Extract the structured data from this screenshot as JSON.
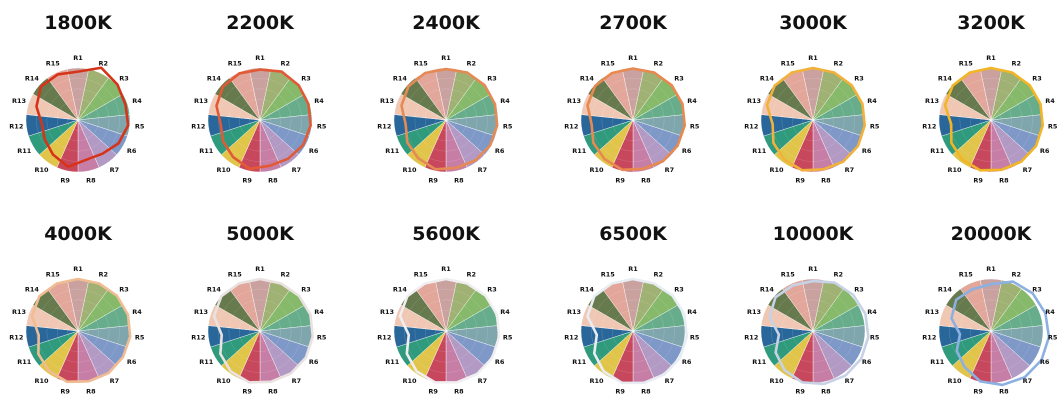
{
  "chart_data": {
    "type": "polar-area",
    "description_note": "",
    "sector_labels": [
      "R1",
      "R2",
      "R3",
      "R4",
      "R5",
      "R6",
      "R7",
      "R8",
      "R9",
      "R10",
      "R11",
      "R12",
      "R13",
      "R14",
      "R15"
    ],
    "sector_colors": [
      "#c9a2a0",
      "#9fb173",
      "#86b96a",
      "#67ad8b",
      "#7fa6ad",
      "#7e98c7",
      "#b29ac4",
      "#c77ea6",
      "#c7485c",
      "#e0c54a",
      "#2f9a7c",
      "#29679a",
      "#f0c7b3",
      "#667a4d",
      "#e2a79a"
    ],
    "charts": [
      {
        "title": "1800K",
        "outline_color": "#d6341a",
        "values": [
          0.93,
          1.1,
          1.02,
          0.96,
          0.97,
          0.9,
          0.8,
          0.78,
          0.92,
          0.82,
          0.74,
          0.7,
          0.84,
          0.96,
          0.96
        ]
      },
      {
        "title": "2200K",
        "outline_color": "#e25a35",
        "values": [
          0.97,
          1.02,
          1.0,
          0.98,
          0.98,
          0.96,
          0.92,
          0.9,
          0.96,
          0.88,
          0.82,
          0.76,
          0.88,
          0.96,
          0.98
        ]
      },
      {
        "title": "2400K",
        "outline_color": "#e58a55",
        "values": [
          0.98,
          1.0,
          1.0,
          0.99,
          0.99,
          0.98,
          0.96,
          0.94,
          0.97,
          0.91,
          0.86,
          0.78,
          0.9,
          0.97,
          0.99
        ]
      },
      {
        "title": "2700K",
        "outline_color": "#e8894f",
        "values": [
          0.99,
          1.0,
          1.0,
          1.0,
          1.0,
          0.99,
          0.98,
          0.96,
          0.98,
          0.93,
          0.88,
          0.8,
          0.92,
          0.98,
          0.99
        ]
      },
      {
        "title": "3000K",
        "outline_color": "#f2b13a",
        "values": [
          1.0,
          1.0,
          1.0,
          1.0,
          1.0,
          1.0,
          0.99,
          0.97,
          0.99,
          0.94,
          0.88,
          0.78,
          0.93,
          0.99,
          1.0
        ]
      },
      {
        "title": "3200K",
        "outline_color": "#f2b526",
        "values": [
          1.0,
          1.0,
          1.0,
          1.0,
          1.0,
          1.0,
          0.99,
          0.98,
          0.99,
          0.94,
          0.88,
          0.77,
          0.93,
          0.99,
          1.0
        ]
      },
      {
        "title": "4000K",
        "outline_color": "#f0bc92",
        "values": [
          1.0,
          1.0,
          1.01,
          1.01,
          1.01,
          1.0,
          1.0,
          0.99,
          1.0,
          0.95,
          0.88,
          0.76,
          0.93,
          1.0,
          1.0
        ]
      },
      {
        "title": "5000K",
        "outline_color": "#eae2e0",
        "values": [
          1.0,
          1.0,
          1.01,
          1.02,
          1.02,
          1.02,
          1.01,
          1.0,
          1.01,
          0.96,
          0.88,
          0.74,
          0.93,
          1.0,
          1.0
        ]
      },
      {
        "title": "5600K",
        "outline_color": "#f1eef2",
        "values": [
          1.0,
          1.0,
          1.02,
          1.03,
          1.03,
          1.03,
          1.02,
          1.01,
          1.01,
          0.96,
          0.87,
          0.72,
          0.93,
          1.0,
          1.0
        ]
      },
      {
        "title": "6500K",
        "outline_color": "#e8edf3",
        "values": [
          1.0,
          1.0,
          1.02,
          1.04,
          1.04,
          1.04,
          1.03,
          1.02,
          1.02,
          0.96,
          0.86,
          0.7,
          0.92,
          1.0,
          1.0
        ]
      },
      {
        "title": "10000K",
        "outline_color": "#c7d2e6",
        "values": [
          0.96,
          1.02,
          1.04,
          1.06,
          1.07,
          1.07,
          1.06,
          1.04,
          1.01,
          0.93,
          0.83,
          0.66,
          0.88,
          0.97,
          0.96
        ]
      },
      {
        "title": "20000K",
        "outline_color": "#8db0e2",
        "values": [
          0.9,
          1.04,
          1.08,
          1.1,
          1.12,
          1.12,
          1.1,
          1.06,
          0.99,
          0.86,
          0.76,
          0.6,
          0.8,
          0.9,
          0.88
        ]
      }
    ]
  }
}
